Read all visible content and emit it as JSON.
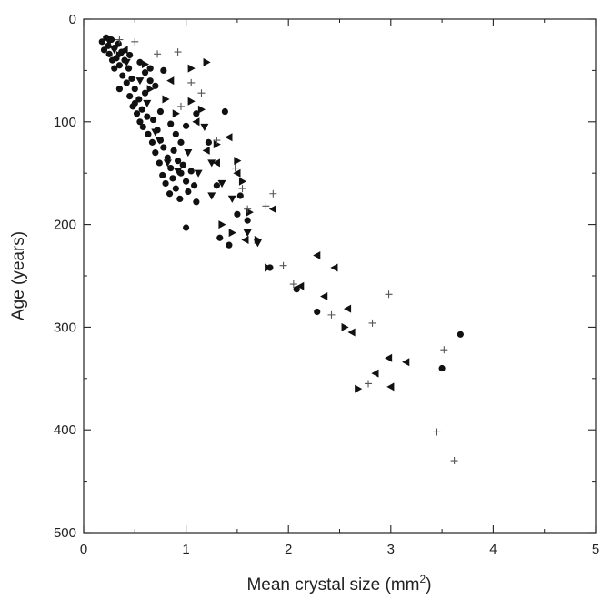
{
  "chart_data": {
    "type": "scatter",
    "title": "",
    "xlabel": "Mean crystal size (mm",
    "xlabel_sup": "2",
    "xlabel_tail": ")",
    "ylabel": "Age (years)",
    "xlim": [
      0,
      5
    ],
    "ylim": [
      0,
      500
    ],
    "y_inverted": true,
    "grid": false,
    "x_ticks": [
      "0",
      "1",
      "2",
      "3",
      "4",
      "5"
    ],
    "y_ticks": [
      "0",
      "100",
      "200",
      "300",
      "400",
      "500"
    ],
    "x_tick_values": [
      0,
      1,
      2,
      3,
      4,
      5
    ],
    "y_tick_values": [
      0,
      100,
      200,
      300,
      400,
      500
    ],
    "series": [
      {
        "marker": "circle",
        "color": "#111111",
        "points": [
          [
            0.18,
            22
          ],
          [
            0.2,
            30
          ],
          [
            0.22,
            18
          ],
          [
            0.24,
            26
          ],
          [
            0.25,
            34
          ],
          [
            0.27,
            20
          ],
          [
            0.3,
            28
          ],
          [
            0.32,
            38
          ],
          [
            0.34,
            24
          ],
          [
            0.35,
            45
          ],
          [
            0.37,
            32
          ],
          [
            0.38,
            55
          ],
          [
            0.4,
            40
          ],
          [
            0.42,
            62
          ],
          [
            0.44,
            48
          ],
          [
            0.45,
            75
          ],
          [
            0.47,
            58
          ],
          [
            0.48,
            85
          ],
          [
            0.5,
            68
          ],
          [
            0.52,
            92
          ],
          [
            0.54,
            78
          ],
          [
            0.55,
            100
          ],
          [
            0.57,
            88
          ],
          [
            0.58,
            105
          ],
          [
            0.6,
            72
          ],
          [
            0.62,
            95
          ],
          [
            0.63,
            112
          ],
          [
            0.65,
            60
          ],
          [
            0.67,
            120
          ],
          [
            0.68,
            98
          ],
          [
            0.7,
            130
          ],
          [
            0.72,
            108
          ],
          [
            0.74,
            140
          ],
          [
            0.75,
            118
          ],
          [
            0.77,
            152
          ],
          [
            0.78,
            125
          ],
          [
            0.8,
            160
          ],
          [
            0.82,
            135
          ],
          [
            0.84,
            170
          ],
          [
            0.85,
            145
          ],
          [
            0.87,
            155
          ],
          [
            0.88,
            128
          ],
          [
            0.9,
            165
          ],
          [
            0.92,
            138
          ],
          [
            0.94,
            175
          ],
          [
            0.95,
            150
          ],
          [
            0.97,
            142
          ],
          [
            1.0,
            158
          ],
          [
            1.02,
            168
          ],
          [
            1.05,
            148
          ],
          [
            1.08,
            162
          ],
          [
            1.1,
            178
          ],
          [
            0.55,
            42
          ],
          [
            0.6,
            52
          ],
          [
            0.65,
            48
          ],
          [
            0.7,
            65
          ],
          [
            0.45,
            35
          ],
          [
            0.5,
            82
          ],
          [
            0.35,
            68
          ],
          [
            0.3,
            48
          ],
          [
            0.28,
            40
          ],
          [
            0.75,
            90
          ],
          [
            0.78,
            50
          ],
          [
            0.85,
            102
          ],
          [
            0.9,
            112
          ],
          [
            0.95,
            120
          ],
          [
            1.0,
            104
          ],
          [
            1.0,
            203
          ],
          [
            1.1,
            92
          ],
          [
            1.22,
            120
          ],
          [
            1.3,
            162
          ],
          [
            1.33,
            213
          ],
          [
            1.38,
            90
          ],
          [
            1.42,
            220
          ],
          [
            1.5,
            190
          ],
          [
            1.53,
            172
          ],
          [
            1.6,
            196
          ],
          [
            1.82,
            242
          ],
          [
            2.08,
            263
          ],
          [
            2.28,
            285
          ],
          [
            3.5,
            340
          ],
          [
            3.68,
            307
          ]
        ]
      },
      {
        "marker": "tri-down",
        "color": "#111111",
        "points": [
          [
            0.25,
            22
          ],
          [
            0.3,
            30
          ],
          [
            0.42,
            42
          ],
          [
            0.55,
            60
          ],
          [
            0.62,
            82
          ],
          [
            0.7,
            110
          ],
          [
            0.74,
            118
          ],
          [
            0.82,
            140
          ],
          [
            0.92,
            148
          ],
          [
            1.02,
            130
          ],
          [
            1.12,
            150
          ],
          [
            1.18,
            105
          ],
          [
            1.25,
            140
          ],
          [
            1.35,
            160
          ],
          [
            1.45,
            175
          ],
          [
            1.6,
            208
          ],
          [
            1.7,
            218
          ],
          [
            1.25,
            172
          ]
        ]
      },
      {
        "marker": "tri-right",
        "color": "#111111",
        "points": [
          [
            0.28,
            20
          ],
          [
            0.35,
            35
          ],
          [
            0.6,
            44
          ],
          [
            0.65,
            68
          ],
          [
            0.8,
            78
          ],
          [
            0.9,
            92
          ],
          [
            1.05,
            48
          ],
          [
            1.05,
            80
          ],
          [
            1.15,
            88
          ],
          [
            1.2,
            42
          ],
          [
            1.3,
            122
          ],
          [
            1.35,
            200
          ],
          [
            1.45,
            208
          ],
          [
            1.5,
            138
          ],
          [
            1.55,
            158
          ],
          [
            1.62,
            188
          ],
          [
            1.7,
            215
          ],
          [
            1.8,
            242
          ],
          [
            2.55,
            300
          ],
          [
            2.68,
            360
          ]
        ]
      },
      {
        "marker": "tri-left",
        "color": "#111111",
        "points": [
          [
            0.4,
            30
          ],
          [
            0.85,
            60
          ],
          [
            1.1,
            100
          ],
          [
            1.2,
            128
          ],
          [
            1.3,
            140
          ],
          [
            1.42,
            115
          ],
          [
            1.5,
            150
          ],
          [
            1.58,
            215
          ],
          [
            1.85,
            185
          ],
          [
            2.12,
            260
          ],
          [
            2.28,
            230
          ],
          [
            2.35,
            270
          ],
          [
            2.45,
            242
          ],
          [
            2.58,
            282
          ],
          [
            2.62,
            305
          ],
          [
            2.85,
            345
          ],
          [
            2.98,
            330
          ],
          [
            3.0,
            358
          ],
          [
            3.15,
            334
          ]
        ]
      },
      {
        "marker": "plus",
        "color": "#555555",
        "points": [
          [
            0.35,
            20
          ],
          [
            0.5,
            22
          ],
          [
            0.72,
            34
          ],
          [
            0.92,
            32
          ],
          [
            1.05,
            62
          ],
          [
            1.3,
            118
          ],
          [
            1.48,
            145
          ],
          [
            1.55,
            165
          ],
          [
            1.78,
            182
          ],
          [
            1.85,
            170
          ],
          [
            1.95,
            240
          ],
          [
            2.05,
            258
          ],
          [
            2.42,
            288
          ],
          [
            2.78,
            355
          ],
          [
            2.82,
            296
          ],
          [
            2.98,
            268
          ],
          [
            3.45,
            402
          ],
          [
            3.52,
            322
          ],
          [
            3.62,
            430
          ],
          [
            1.15,
            72
          ],
          [
            0.95,
            85
          ],
          [
            1.6,
            185
          ]
        ]
      }
    ]
  }
}
